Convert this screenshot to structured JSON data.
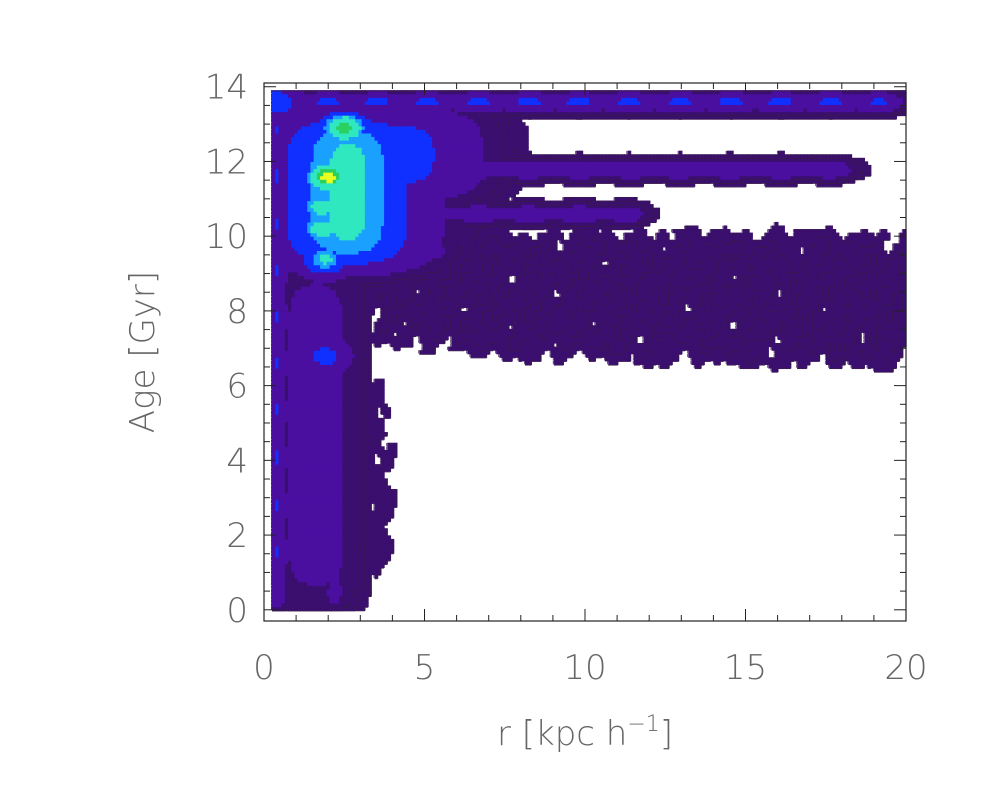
{
  "chart_data": {
    "type": "contour",
    "xlabel": "r [kpc h",
    "xlabel_sup": "−1",
    "xlabel_close": "]",
    "ylabel": "Age [Gyr]",
    "xlim": [
      0,
      20
    ],
    "ylim": [
      -0.3,
      14.1
    ],
    "x_ticks": [
      0,
      5,
      10,
      15,
      20
    ],
    "x_tick_labels": [
      "0",
      "5",
      "10",
      "15",
      "20"
    ],
    "y_ticks": [
      0,
      2,
      4,
      6,
      8,
      10,
      12,
      14
    ],
    "y_tick_labels": [
      "0",
      "2",
      "4",
      "6",
      "8",
      "10",
      "12",
      "14"
    ],
    "grid": false,
    "colormap": [
      "#ffffff",
      "#3a0f6e",
      "#4b0fa0",
      "#1030ff",
      "#1aa0ff",
      "#30e8c0",
      "#2bd060",
      "#e8ff20"
    ],
    "peaks": [
      {
        "r": 2.5,
        "age": 12.9,
        "level": 0.93
      },
      {
        "r": 2.0,
        "age": 11.6,
        "level": 1.0
      },
      {
        "r": 1.8,
        "age": 10.8,
        "level": 0.8
      },
      {
        "r": 1.8,
        "age": 10.2,
        "level": 0.8
      },
      {
        "r": 1.9,
        "age": 9.4,
        "level": 0.75
      },
      {
        "r": 0.4,
        "age": 13.6,
        "level": 0.6
      },
      {
        "r": 1.9,
        "age": 6.8,
        "level": 0.55
      }
    ],
    "ridges": [
      {
        "axis": "age",
        "at": 13.6,
        "from_r": 0.3,
        "to_r": 20,
        "level": 0.55
      },
      {
        "axis": "age",
        "at": 11.8,
        "from_r": 1.0,
        "to_r": 18.5,
        "level": 0.45
      },
      {
        "axis": "age",
        "at": 10.6,
        "from_r": 1.0,
        "to_r": 12,
        "level": 0.4
      },
      {
        "axis": "age",
        "at": 9.6,
        "from_r": 1.5,
        "to_r": 6,
        "level": 0.4
      },
      {
        "axis": "r",
        "at": 0.4,
        "from_age": 0,
        "to_age": 14,
        "level": 0.5
      },
      {
        "axis": "r",
        "at": 2.2,
        "from_age": 0,
        "to_age": 9,
        "level": 0.4
      }
    ]
  }
}
